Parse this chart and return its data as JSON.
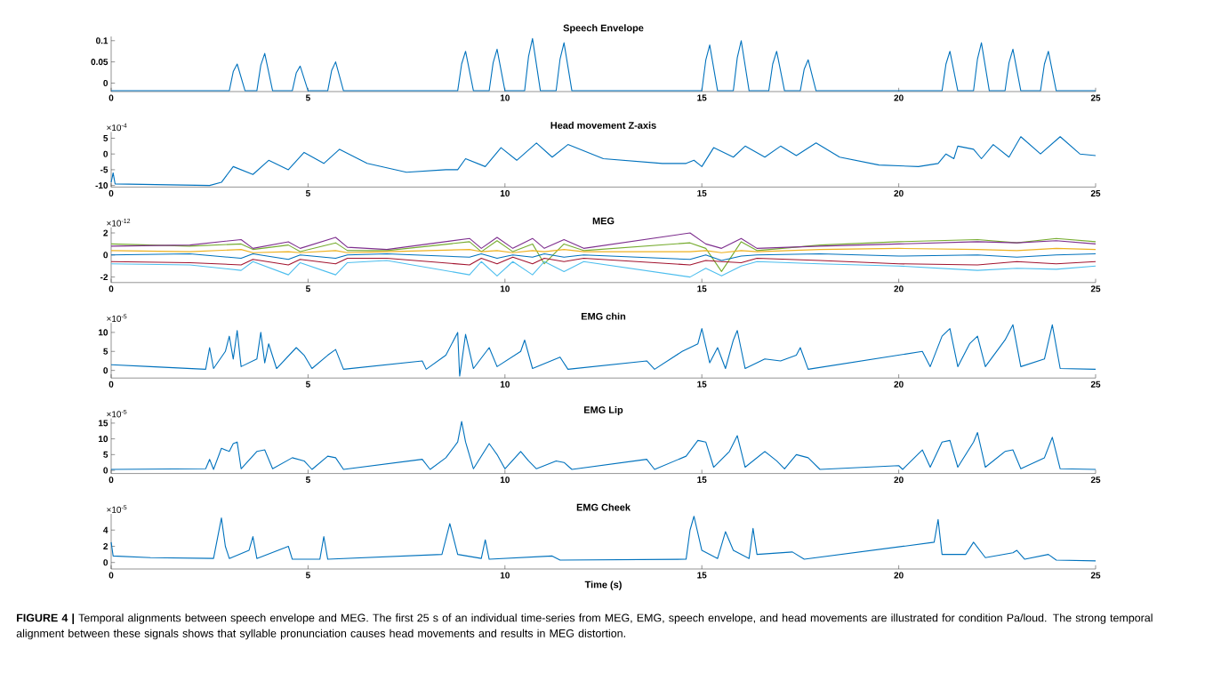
{
  "chart_data": [
    {
      "type": "line",
      "title": "Speech Envelope",
      "xlim": [
        0,
        25
      ],
      "xticks": [
        0,
        5,
        10,
        15,
        20,
        25
      ],
      "ylim": [
        -0.02,
        0.11
      ],
      "yticks": [
        0,
        0.05,
        0.1
      ],
      "color": "#0072bd",
      "x": [
        0,
        3.0,
        3.1,
        3.2,
        3.4,
        3.7,
        3.8,
        3.9,
        4.1,
        4.6,
        4.7,
        4.8,
        5.0,
        5.5,
        5.6,
        5.7,
        5.9,
        8.8,
        8.9,
        9.0,
        9.2,
        9.6,
        9.7,
        9.8,
        10.0,
        10.5,
        10.6,
        10.7,
        10.9,
        11.3,
        11.4,
        11.5,
        11.7,
        15.0,
        15.1,
        15.2,
        15.4,
        15.8,
        15.9,
        16.0,
        16.2,
        16.7,
        16.8,
        16.9,
        17.1,
        17.5,
        17.6,
        17.7,
        17.9,
        21.1,
        21.2,
        21.3,
        21.5,
        21.9,
        22.0,
        22.1,
        22.3,
        22.7,
        22.8,
        22.9,
        23.1,
        23.6,
        23.7,
        23.8,
        24.0,
        25
      ],
      "values": [
        -0.018,
        -0.018,
        0.027,
        0.045,
        -0.018,
        -0.018,
        0.042,
        0.07,
        -0.018,
        -0.018,
        0.024,
        0.04,
        -0.018,
        -0.018,
        0.03,
        0.05,
        -0.018,
        -0.018,
        0.045,
        0.075,
        -0.018,
        -0.018,
        0.048,
        0.08,
        -0.018,
        -0.018,
        0.063,
        0.105,
        -0.018,
        -0.018,
        0.057,
        0.095,
        -0.018,
        -0.018,
        0.054,
        0.09,
        -0.018,
        -0.018,
        0.06,
        0.1,
        -0.018,
        -0.018,
        0.045,
        0.075,
        -0.018,
        -0.018,
        0.033,
        0.055,
        -0.018,
        -0.018,
        0.045,
        0.075,
        -0.018,
        -0.018,
        0.057,
        0.095,
        -0.018,
        -0.018,
        0.048,
        0.08,
        -0.018,
        -0.018,
        0.045,
        0.075,
        -0.018,
        -0.018
      ]
    },
    {
      "type": "line",
      "title": "Head movement Z-axis",
      "annotations": [
        "×10$^{-4}$"
      ],
      "xlim": [
        0,
        25
      ],
      "xticks": [
        0,
        5,
        10,
        15,
        20,
        25
      ],
      "ylim": [
        -10.5,
        7
      ],
      "yticks": [
        -10,
        -5,
        0,
        5
      ],
      "color": "#0072bd",
      "x": [
        0,
        0.05,
        0.1,
        2.5,
        2.8,
        3.1,
        3.6,
        4.0,
        4.5,
        4.9,
        5.4,
        5.8,
        6.5,
        7.5,
        8.5,
        8.8,
        9.0,
        9.5,
        9.9,
        10.3,
        10.8,
        11.2,
        11.6,
        12.5,
        14,
        14.6,
        14.8,
        15.0,
        15.3,
        15.8,
        16.1,
        16.6,
        17.0,
        17.4,
        17.9,
        18.5,
        19.5,
        20.5,
        21,
        21.2,
        21.4,
        21.5,
        21.9,
        22.1,
        22.4,
        22.8,
        23.1,
        23.6,
        24.1,
        24.6,
        25
      ],
      "values": [
        -9,
        -6,
        -9.5,
        -10,
        -9,
        -4,
        -6.5,
        -2,
        -5,
        0.5,
        -3,
        1.5,
        -3,
        -5.8,
        -5,
        -5,
        -1.5,
        -4,
        2,
        -2,
        3.5,
        -1,
        3,
        -1.5,
        -3,
        -3,
        -2,
        -4,
        2,
        -1,
        2.5,
        -1,
        2.5,
        -0.5,
        3.5,
        -1,
        -3.5,
        -4,
        -3,
        0,
        -1.5,
        2.5,
        1.5,
        -1.5,
        3,
        -1,
        5.5,
        0,
        5.5,
        0,
        -0.5
      ]
    },
    {
      "type": "line",
      "title": "MEG",
      "annotations": [
        "×10$^{-12}$"
      ],
      "xlim": [
        0,
        25
      ],
      "xticks": [
        0,
        5,
        10,
        15,
        20,
        25
      ],
      "ylim": [
        -2.5,
        2.5
      ],
      "yticks": [
        -2,
        0,
        2
      ],
      "x": [
        0,
        2,
        3.3,
        3.6,
        4.5,
        4.8,
        5.7,
        6.0,
        7,
        9.1,
        9.4,
        9.8,
        10.2,
        10.7,
        11.0,
        11.5,
        12,
        14.7,
        15.1,
        15.5,
        16.0,
        16.4,
        18,
        20,
        22,
        23,
        24,
        25
      ],
      "series": [
        {
          "color": "#77ac30",
          "values": [
            1.0,
            0.8,
            1.0,
            0.5,
            0.9,
            0.3,
            1.1,
            0.4,
            0.4,
            1.2,
            0.3,
            1.3,
            0.3,
            1.0,
            -0.8,
            1.0,
            0.4,
            1.1,
            0.6,
            -1.5,
            1.2,
            0.4,
            0.9,
            1.2,
            1.4,
            1.1,
            1.5,
            1.2
          ]
        },
        {
          "color": "#4dbeee",
          "values": [
            -0.8,
            -0.9,
            -1.4,
            -0.6,
            -1.8,
            -0.7,
            -1.8,
            -0.7,
            -0.5,
            -1.8,
            -0.6,
            -1.9,
            -0.6,
            -1.8,
            -0.6,
            -1.5,
            -0.6,
            -2.0,
            -1.2,
            -1.9,
            -1.0,
            -0.6,
            -0.8,
            -1.0,
            -1.4,
            -1.2,
            -1.3,
            -1.0
          ]
        },
        {
          "color": "#a2142f",
          "values": [
            -0.6,
            -0.7,
            -0.9,
            -0.4,
            -0.9,
            -0.4,
            -0.8,
            -0.3,
            -0.3,
            -0.9,
            -0.3,
            -0.8,
            -0.2,
            -0.8,
            -0.3,
            -0.6,
            -0.3,
            -0.9,
            -0.5,
            -0.6,
            -0.7,
            -0.3,
            -0.5,
            -0.8,
            -0.9,
            -0.6,
            -0.8,
            -0.6
          ]
        },
        {
          "color": "#edb120",
          "values": [
            0.4,
            0.3,
            0.5,
            0.2,
            0.3,
            0.2,
            0.4,
            0.2,
            0.3,
            0.5,
            0.3,
            0.4,
            0.2,
            0.4,
            0.3,
            0.5,
            0.3,
            0.3,
            0.4,
            0.2,
            0.4,
            0.3,
            0.5,
            0.6,
            0.5,
            0.4,
            0.6,
            0.5
          ]
        },
        {
          "color": "#0072bd",
          "values": [
            0,
            0.1,
            -0.3,
            0.1,
            -0.4,
            0,
            -0.3,
            0,
            0.1,
            -0.2,
            0.1,
            -0.3,
            0,
            -0.2,
            0.1,
            -0.2,
            0,
            -0.4,
            0,
            -0.5,
            -0.1,
            0,
            0.1,
            -0.1,
            0,
            -0.2,
            0,
            0.1
          ]
        },
        {
          "color": "#7e2f8e",
          "values": [
            0.8,
            0.9,
            1.4,
            0.6,
            1.2,
            0.6,
            1.6,
            0.7,
            0.5,
            1.5,
            0.6,
            1.6,
            0.6,
            1.5,
            0.6,
            1.4,
            0.6,
            2.0,
            1.0,
            0.6,
            1.5,
            0.6,
            0.8,
            1.0,
            1.2,
            1.1,
            1.3,
            1.0
          ]
        }
      ]
    },
    {
      "type": "line",
      "title": "EMG chin",
      "annotations": [
        "×10$^{-5}$"
      ],
      "xlim": [
        0,
        25
      ],
      "xticks": [
        0,
        5,
        10,
        15,
        20,
        25
      ],
      "ylim": [
        -2,
        12.5
      ],
      "yticks": [
        0,
        5,
        10
      ],
      "color": "#0072bd",
      "x": [
        0,
        1,
        2.4,
        2.5,
        2.6,
        2.9,
        3.0,
        3.1,
        3.2,
        3.3,
        3.7,
        3.8,
        3.9,
        4.0,
        4.2,
        4.7,
        4.9,
        5.1,
        5.5,
        5.7,
        5.9,
        7.9,
        8.0,
        8.5,
        8.8,
        8.85,
        8.9,
        9.0,
        9.2,
        9.6,
        9.8,
        10.4,
        10.5,
        10.7,
        11.4,
        11.6,
        13.6,
        13.8,
        14.5,
        14.9,
        15.0,
        15.2,
        15.4,
        15.6,
        15.8,
        15.9,
        16.1,
        16.6,
        17.0,
        17.4,
        17.5,
        17.7,
        20.6,
        20.8,
        21.1,
        21.3,
        21.5,
        21.8,
        22.0,
        22.2,
        22.7,
        22.9,
        23.1,
        23.7,
        23.9,
        24.1,
        25
      ],
      "values": [
        1.5,
        1,
        0.3,
        6,
        0.5,
        5,
        9,
        3,
        10.5,
        1,
        3,
        10,
        2,
        7,
        0.5,
        6,
        4,
        0.5,
        4,
        5.5,
        0.3,
        2.5,
        0.3,
        4,
        10,
        -1.5,
        2,
        9.5,
        0.5,
        6,
        1,
        5,
        8,
        0.5,
        3.5,
        0.3,
        2.5,
        0.3,
        5,
        7,
        11,
        2,
        6,
        0.5,
        8,
        10.5,
        0.5,
        3,
        2.5,
        4,
        6,
        0.3,
        5,
        1,
        9,
        11,
        1,
        7,
        9,
        1,
        8,
        12,
        1,
        3,
        12,
        0.5,
        0.3
      ]
    },
    {
      "type": "line",
      "title": "EMG Lip",
      "annotations": [
        "×10$^{-5}$"
      ],
      "xlim": [
        0,
        25
      ],
      "xticks": [
        0,
        5,
        10,
        15,
        20,
        25
      ],
      "ylim": [
        -1,
        16.5
      ],
      "yticks": [
        0,
        5,
        10,
        15
      ],
      "color": "#0072bd",
      "x": [
        0,
        2.4,
        2.5,
        2.6,
        2.8,
        3.0,
        3.1,
        3.2,
        3.3,
        3.7,
        3.9,
        4.1,
        4.6,
        4.9,
        5.1,
        5.5,
        5.7,
        5.9,
        7.9,
        8.1,
        8.5,
        8.8,
        8.9,
        9.0,
        9.2,
        9.6,
        9.8,
        10.0,
        10.4,
        10.6,
        10.8,
        11.3,
        11.5,
        11.7,
        13.6,
        13.8,
        14.6,
        14.9,
        15.1,
        15.3,
        15.7,
        15.9,
        16.1,
        16.6,
        16.9,
        17.1,
        17.4,
        17.7,
        18.0,
        20.0,
        20.1,
        20.6,
        20.8,
        21.1,
        21.3,
        21.5,
        21.9,
        22.0,
        22.2,
        22.7,
        22.9,
        23.1,
        23.7,
        23.9,
        24.1,
        25
      ],
      "values": [
        0.3,
        0.5,
        3.5,
        0.3,
        7,
        6,
        8.5,
        9,
        0.5,
        6,
        6.5,
        0.5,
        4,
        3,
        0.3,
        4.5,
        4,
        0.3,
        3.5,
        0.3,
        4,
        9,
        15.5,
        9,
        0.5,
        8.5,
        5,
        0.5,
        6,
        3,
        0.5,
        3,
        2.5,
        0.3,
        3.5,
        0.3,
        4.5,
        9.5,
        9,
        1,
        6,
        11,
        1,
        6,
        3,
        0.5,
        5,
        4,
        0.3,
        1.5,
        0.3,
        6.5,
        1,
        9,
        9.5,
        1,
        9,
        12,
        1,
        6,
        6.5,
        0.5,
        4,
        10.5,
        0.5,
        0.3
      ]
    },
    {
      "type": "line",
      "title": "EMG Cheek",
      "xlabel": "Time (s)",
      "annotations": [
        "×10$^{-5}$",
        "**FIGURE 4 |** Temporal alignments between speech envelope and MEG. The first 25 s of an individual time-series from MEG, EMG, speech envelope, and head movements are illustrated for condition Pa/loud. The strong temporal alignment between these signals shows that syllable pronunciation causes head movements and results in MEG distortion."
      ],
      "xlim": [
        0,
        25
      ],
      "xticks": [
        0,
        5,
        10,
        15,
        20,
        25
      ],
      "ylim": [
        -0.8,
        6
      ],
      "yticks": [
        0,
        2,
        4
      ],
      "color": "#0072bd",
      "x": [
        0,
        0.05,
        1,
        2.6,
        2.7,
        2.8,
        2.9,
        3.0,
        3.5,
        3.6,
        3.7,
        4.4,
        4.5,
        4.6,
        5.3,
        5.4,
        5.5,
        8.4,
        8.6,
        8.8,
        9.4,
        9.5,
        9.6,
        11.2,
        11.4,
        14.6,
        14.7,
        14.8,
        15.0,
        15.4,
        15.6,
        15.8,
        16.2,
        16.3,
        16.4,
        17.3,
        17.6,
        20.9,
        21.0,
        21.1,
        21.7,
        21.9,
        22.2,
        22.9,
        23.0,
        23.2,
        23.8,
        24.0,
        25
      ],
      "values": [
        2.5,
        0.8,
        0.6,
        0.5,
        3,
        5.5,
        2,
        0.5,
        1.5,
        3.2,
        0.5,
        1.8,
        2,
        0.4,
        0.4,
        3.2,
        0.4,
        1,
        4.8,
        1,
        0.5,
        2.8,
        0.4,
        0.8,
        0.3,
        0.4,
        4,
        5.7,
        1.5,
        0.5,
        3.8,
        1.5,
        0.5,
        4.2,
        1,
        1.3,
        0.4,
        2.5,
        5.3,
        1,
        1,
        2.5,
        0.6,
        1.2,
        1.5,
        0.4,
        1,
        0.3,
        0.2
      ]
    }
  ]
}
